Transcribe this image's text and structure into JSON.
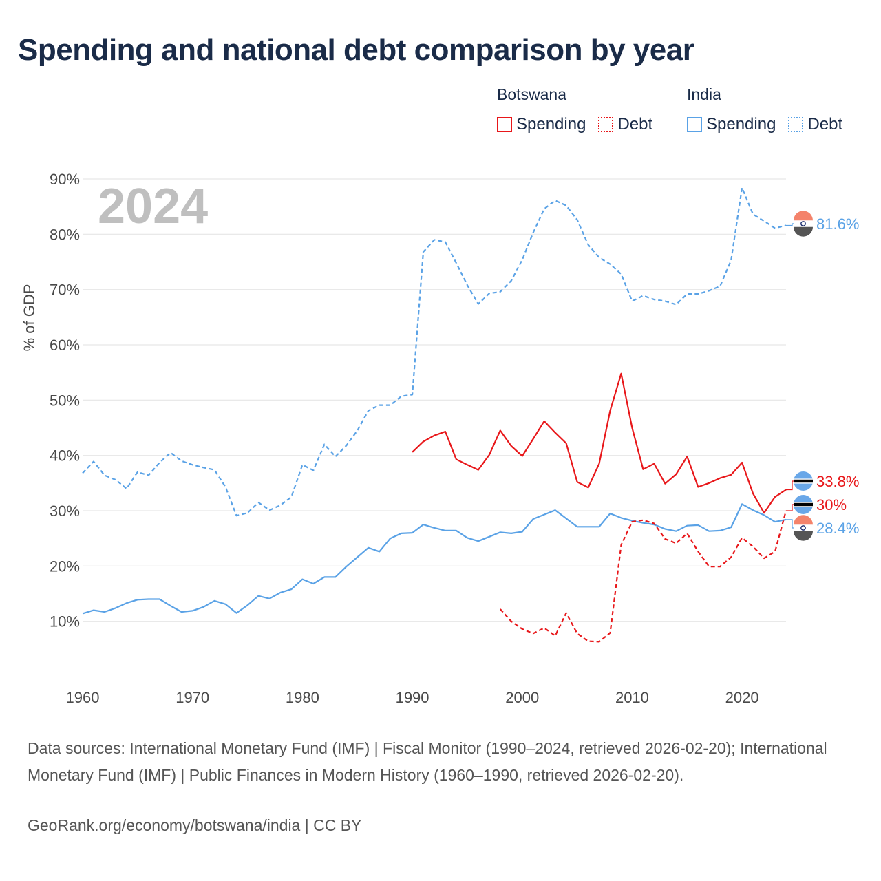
{
  "title": "Spending and national debt comparison by year",
  "legend": {
    "groups": [
      {
        "name": "Botswana",
        "items": [
          {
            "label": "Spending",
            "color": "#e8171a",
            "style": "solid"
          },
          {
            "label": "Debt",
            "color": "#e8171a",
            "style": "dotted"
          }
        ]
      },
      {
        "name": "India",
        "items": [
          {
            "label": "Spending",
            "color": "#5aa2e6",
            "style": "solid"
          },
          {
            "label": "Debt",
            "color": "#5aa2e6",
            "style": "dotted"
          }
        ]
      }
    ]
  },
  "chart_data": {
    "type": "line",
    "ylabel": "% of GDP",
    "year_watermark": "2024",
    "xlim": [
      1960,
      2024
    ],
    "ylim": [
      0,
      90
    ],
    "yticks": [
      10,
      20,
      30,
      40,
      50,
      60,
      70,
      80,
      90
    ],
    "ytick_labels": [
      "10%",
      "20%",
      "30%",
      "40%",
      "50%",
      "60%",
      "70%",
      "80%",
      "90%"
    ],
    "xticks": [
      1960,
      1970,
      1980,
      1990,
      2000,
      2010,
      2020
    ],
    "xtick_labels": [
      "1960",
      "1970",
      "1980",
      "1990",
      "2000",
      "2010",
      "2020"
    ],
    "grid": true,
    "series": [
      {
        "name": "India Debt",
        "color": "#5aa2e6",
        "dash": "dashed",
        "end_label": "81.6%",
        "start_year": 1960,
        "values": [
          36.8,
          38.9,
          36.4,
          35.6,
          34.0,
          37.0,
          36.4,
          38.7,
          40.5,
          39.0,
          38.3,
          37.8,
          37.4,
          34.3,
          29.1,
          29.6,
          31.5,
          30.1,
          31.0,
          32.5,
          38.3,
          37.3,
          42.0,
          39.8,
          41.8,
          44.5,
          48.1,
          49.1,
          49.1,
          50.7,
          51.0,
          76.8,
          79.0,
          78.6,
          74.8,
          70.8,
          67.4,
          69.3,
          69.6,
          71.6,
          75.4,
          80.3,
          84.6,
          86.1,
          85.2,
          82.6,
          78.1,
          75.8,
          74.6,
          72.8,
          67.9,
          68.9,
          68.2,
          67.9,
          67.3,
          69.2,
          69.2,
          69.8,
          70.6,
          75.3,
          88.4,
          83.6,
          82.4,
          81.1,
          81.6
        ]
      },
      {
        "name": "India Spending",
        "color": "#5aa2e6",
        "dash": "solid",
        "end_label": "28.4%",
        "start_year": 1960,
        "values": [
          11.4,
          12.0,
          11.7,
          12.4,
          13.3,
          13.9,
          14.0,
          14.0,
          12.8,
          11.7,
          11.9,
          12.6,
          13.7,
          13.1,
          11.5,
          12.9,
          14.6,
          14.1,
          15.2,
          15.8,
          17.6,
          16.8,
          18.0,
          18.0,
          19.9,
          21.6,
          23.3,
          22.6,
          25.0,
          25.9,
          26.0,
          27.5,
          26.9,
          26.4,
          26.4,
          25.1,
          24.5,
          25.3,
          26.1,
          25.9,
          26.2,
          28.5,
          29.3,
          30.1,
          28.6,
          27.1,
          27.1,
          27.1,
          29.5,
          28.7,
          28.2,
          27.8,
          27.5,
          26.7,
          26.3,
          27.3,
          27.4,
          26.3,
          26.4,
          27.0,
          31.2,
          30.1,
          29.2,
          28.0,
          28.4
        ]
      },
      {
        "name": "Botswana Spending",
        "color": "#e8171a",
        "dash": "solid",
        "end_label": "33.8%",
        "start_year": 1990,
        "values": [
          40.6,
          42.5,
          43.6,
          44.3,
          39.3,
          38.3,
          37.4,
          40.1,
          44.5,
          41.7,
          39.9,
          43.0,
          46.2,
          44.1,
          42.2,
          35.2,
          34.2,
          38.5,
          48.1,
          54.8,
          45.0,
          37.5,
          38.5,
          34.9,
          36.6,
          39.8,
          34.3,
          35.0,
          35.9,
          36.5,
          38.7,
          33.1,
          29.6,
          32.5,
          33.8
        ]
      },
      {
        "name": "Botswana Debt",
        "color": "#e8171a",
        "dash": "dashed",
        "end_label": "30%",
        "start_year": 1998,
        "values": [
          12.2,
          10.0,
          8.6,
          7.8,
          8.8,
          7.4,
          11.5,
          7.8,
          6.4,
          6.3,
          7.9,
          23.8,
          28.0,
          28.3,
          27.7,
          24.9,
          24.1,
          25.9,
          22.6,
          19.9,
          19.9,
          21.6,
          25.1,
          23.5,
          21.4,
          22.6,
          30.0
        ]
      }
    ],
    "end_labels": [
      {
        "series": "India Debt",
        "text": "81.6%",
        "color": "#5aa2e6",
        "flag": "india"
      },
      {
        "series": "Botswana Spending",
        "text": "33.8%",
        "color": "#e8171a",
        "flag": "botswana"
      },
      {
        "series": "Botswana Debt",
        "text": "30%",
        "color": "#e8171a",
        "flag": "botswana"
      },
      {
        "series": "India Spending",
        "text": "28.4%",
        "color": "#5aa2e6",
        "flag": "india"
      }
    ]
  },
  "footer": {
    "sources": "Data sources: International Monetary Fund (IMF) | Fiscal Monitor (1990–2024, retrieved 2026-02-20); International Monetary Fund (IMF) | Public Finances in Modern History (1960–1990, retrieved 2026-02-20).",
    "credit": "GeoRank.org/economy/botswana/india | CC BY"
  }
}
